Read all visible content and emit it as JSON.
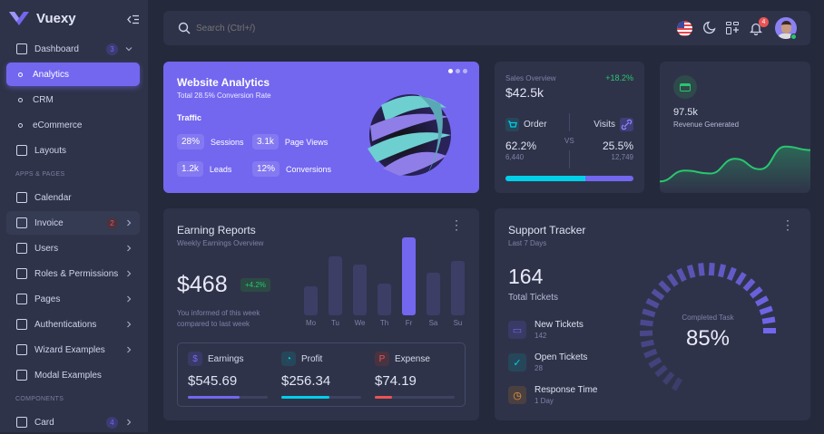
{
  "brand": {
    "name": "Vuexy",
    "accent": "#7367f0"
  },
  "sidebar": {
    "items": [
      {
        "label": "Dashboard",
        "icon": "home-icon",
        "badge": "3",
        "chevron": "down"
      },
      {
        "label": "Analytics",
        "sub": true,
        "active": true
      },
      {
        "label": "CRM",
        "sub": true
      },
      {
        "label": "eCommerce",
        "sub": true
      },
      {
        "label": "Layouts",
        "icon": "layout-icon"
      },
      {
        "label": "Calendar",
        "icon": "calendar-icon"
      },
      {
        "label": "Invoice",
        "icon": "invoice-icon",
        "badge": "2",
        "chevron": "right"
      },
      {
        "label": "Users",
        "icon": "users-icon",
        "chevron": "right"
      },
      {
        "label": "Roles & Permissions",
        "icon": "settings-icon",
        "chevron": "right"
      },
      {
        "label": "Pages",
        "icon": "file-icon",
        "chevron": "right"
      },
      {
        "label": "Authentications",
        "icon": "lock-icon",
        "chevron": "right"
      },
      {
        "label": "Wizard Examples",
        "icon": "wizard-icon",
        "chevron": "right"
      },
      {
        "label": "Modal Examples",
        "icon": "square-icon"
      },
      {
        "label": "Card",
        "icon": "id-card-icon",
        "badge": "4",
        "chevron": "right"
      }
    ],
    "sections": [
      "APPS & PAGES",
      "COMPONENTS"
    ]
  },
  "navbar": {
    "search_placeholder": "Search (Ctrl+/)",
    "notifications": "4"
  },
  "website_analytics": {
    "title": "Website Analytics",
    "subtitle": "Total 28.5% Conversion Rate",
    "traffic_label": "Traffic",
    "metrics": [
      {
        "value": "28%",
        "label": "Sessions"
      },
      {
        "value": "3.1k",
        "label": "Page Views"
      },
      {
        "value": "1.2k",
        "label": "Leads"
      },
      {
        "value": "12%",
        "label": "Conversions"
      }
    ]
  },
  "sales_overview": {
    "label": "Sales Overview",
    "change": "+18.2%",
    "value": "$42.5k",
    "order_label": "Order",
    "order_pct": "62.2%",
    "order_count": "6,440",
    "vs": "VS",
    "visits_label": "Visits",
    "visits_pct": "25.5%",
    "visits_count": "12,749",
    "order_share": 62.2
  },
  "revenue": {
    "value": "97.5k",
    "label": "Revenue Generated",
    "series": [
      10,
      35,
      28,
      62,
      38,
      90,
      82
    ]
  },
  "earning": {
    "title": "Earning Reports",
    "subtitle": "Weekly Earnings Overview",
    "value": "$468",
    "change": "+4.2%",
    "note1": "You informed of this week",
    "note2": "compared to last week",
    "days": [
      "Mo",
      "Tu",
      "We",
      "Th",
      "Fr",
      "Sa",
      "Su"
    ],
    "bars": [
      37,
      76,
      65,
      41,
      100,
      55,
      70
    ],
    "highlight": "Fr",
    "stats": [
      {
        "label": "Earnings",
        "value": "$545.69",
        "icon": "dollar-icon",
        "color": "#7367f0",
        "progress": 65
      },
      {
        "label": "Profit",
        "value": "$256.34",
        "icon": "pie-chart-icon",
        "color": "#00cfe8",
        "progress": 60
      },
      {
        "label": "Expense",
        "value": "$74.19",
        "icon": "brand-paypal-icon",
        "color": "#ea5455",
        "progress": 22
      }
    ]
  },
  "support": {
    "title": "Support Tracker",
    "subtitle": "Last 7 Days",
    "total": "164",
    "total_label": "Total Tickets",
    "items": [
      {
        "title": "New Tickets",
        "value": "142",
        "color": "#7367f0",
        "icon": "ticket-icon"
      },
      {
        "title": "Open Tickets",
        "value": "28",
        "color": "#00cfe8",
        "icon": "circle-check-icon"
      },
      {
        "title": "Response Time",
        "value": "1 Day",
        "color": "#ff9f43",
        "icon": "clock-icon"
      }
    ],
    "gauge_label": "Completed Task",
    "gauge_value": "85%",
    "gauge_pct": 85
  }
}
